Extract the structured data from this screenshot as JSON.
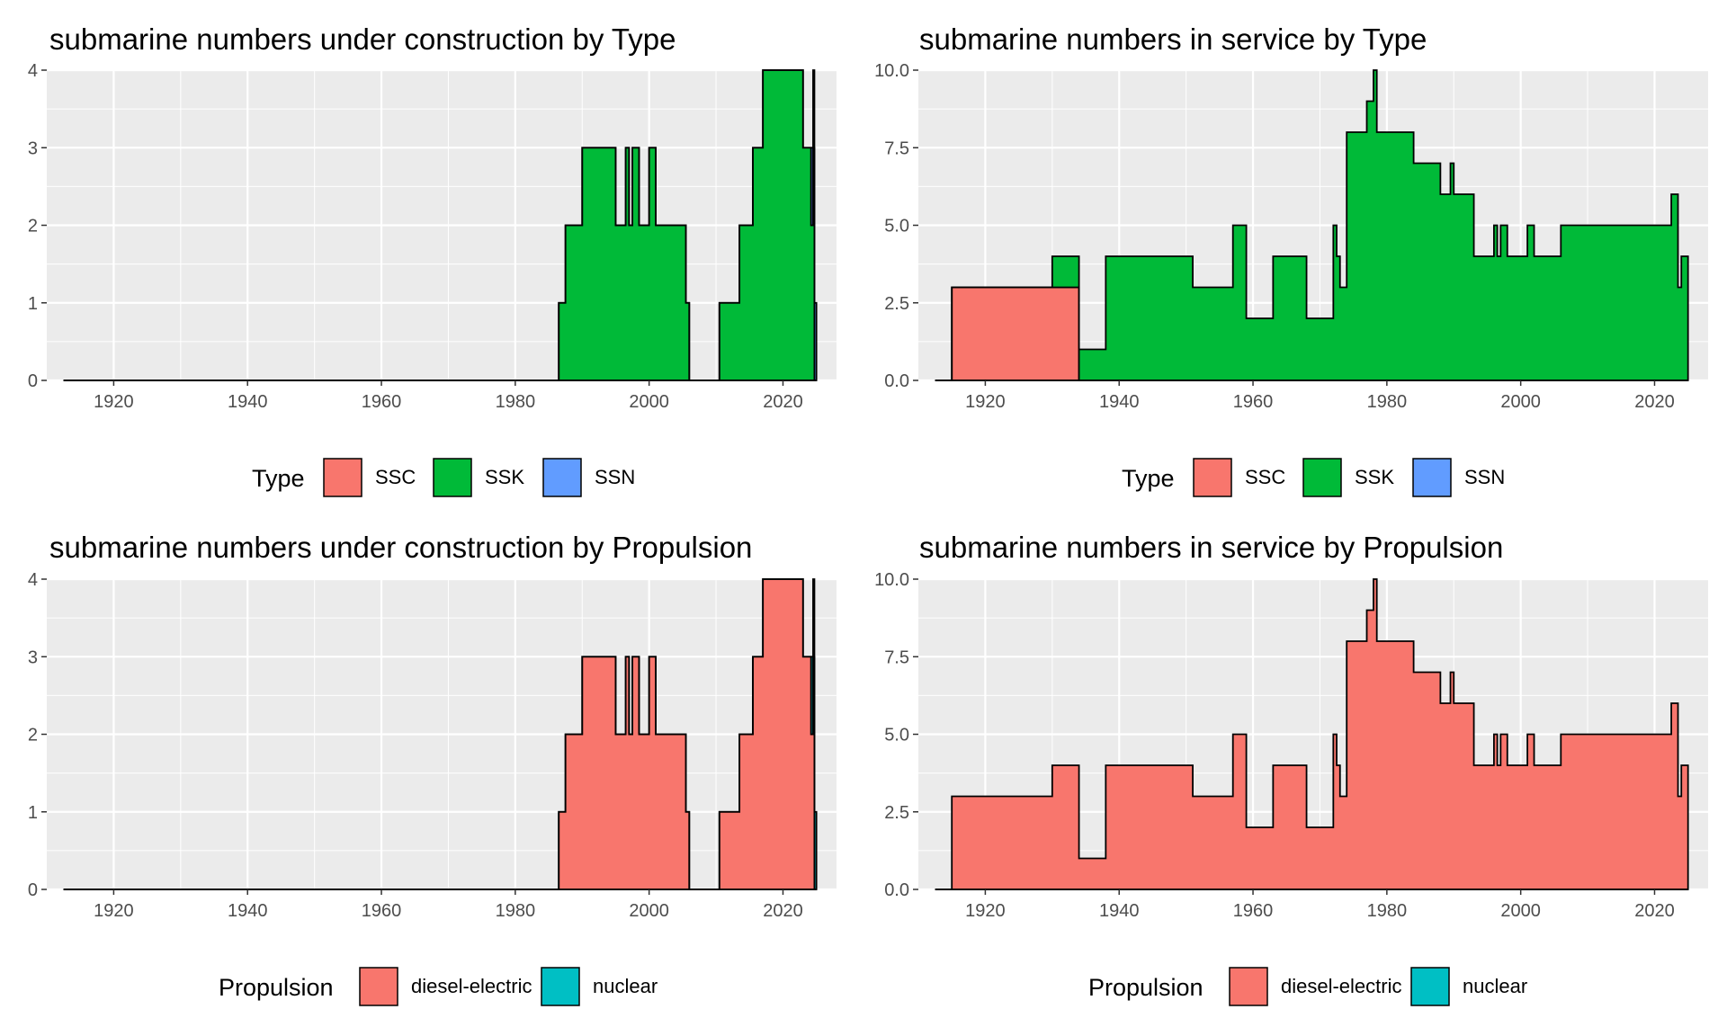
{
  "chart_data": [
    {
      "type": "area",
      "stacked": true,
      "title": "submarine numbers under construction by Type",
      "xlabel": "",
      "ylabel": "",
      "xlim": [
        1910,
        2028
      ],
      "ylim": [
        0,
        4
      ],
      "x_ticks": [
        "1920",
        "1940",
        "1960",
        "1980",
        "2000",
        "2020"
      ],
      "y_ticks": [
        "0",
        "1",
        "2",
        "3",
        "4"
      ],
      "grid": true,
      "legend": {
        "title": "Type",
        "position": "bottom",
        "entries": [
          "SSC",
          "SSK",
          "SSN"
        ]
      },
      "series": [
        {
          "name": "SSC",
          "color": "#F8766D",
          "steps": [
            [
              1912.5,
              0
            ],
            [
              2025,
              0
            ]
          ]
        },
        {
          "name": "SSK",
          "color": "#00BA38",
          "steps": [
            [
              1912.5,
              0
            ],
            [
              1986.5,
              1
            ],
            [
              1987.5,
              2
            ],
            [
              1990,
              3
            ],
            [
              1995,
              2
            ],
            [
              1996.5,
              3
            ],
            [
              1997,
              2
            ],
            [
              1997.5,
              3
            ],
            [
              1998.5,
              2
            ],
            [
              2000,
              3
            ],
            [
              2001,
              2
            ],
            [
              2005.5,
              1
            ],
            [
              2006,
              0
            ],
            [
              2010.5,
              1
            ],
            [
              2013.5,
              2
            ],
            [
              2015.5,
              3
            ],
            [
              2017,
              4
            ],
            [
              2023,
              3
            ],
            [
              2024.2,
              2
            ],
            [
              2024.5,
              3
            ],
            [
              2024.7,
              0
            ],
            [
              2025,
              0
            ]
          ]
        },
        {
          "name": "SSN",
          "color": "#619CFF",
          "steps": [
            [
              1912.5,
              0
            ],
            [
              2024.2,
              1
            ],
            [
              2025,
              0
            ]
          ]
        }
      ]
    },
    {
      "type": "area",
      "stacked": true,
      "title": "submarine numbers in service by Type",
      "xlabel": "",
      "ylabel": "",
      "xlim": [
        1910,
        2028
      ],
      "ylim": [
        0,
        10
      ],
      "x_ticks": [
        "1920",
        "1940",
        "1960",
        "1980",
        "2000",
        "2020"
      ],
      "y_ticks": [
        "0.0",
        "2.5",
        "5.0",
        "7.5",
        "10.0"
      ],
      "grid": true,
      "legend": {
        "title": "Type",
        "position": "bottom",
        "entries": [
          "SSC",
          "SSK",
          "SSN"
        ]
      },
      "series": [
        {
          "name": "SSC",
          "color": "#F8766D",
          "steps": [
            [
              1912.5,
              0
            ],
            [
              1915,
              3
            ],
            [
              1930,
              3
            ],
            [
              1934,
              0
            ],
            [
              2025,
              0
            ]
          ]
        },
        {
          "name": "SSK",
          "color": "#00BA38",
          "steps": [
            [
              1912.5,
              0
            ],
            [
              1930,
              1
            ],
            [
              1938,
              4
            ],
            [
              1951,
              3
            ],
            [
              1957,
              5
            ],
            [
              1959,
              2
            ],
            [
              1963,
              4
            ],
            [
              1968,
              2
            ],
            [
              1972,
              5
            ],
            [
              1972.5,
              4
            ],
            [
              1973,
              3
            ],
            [
              1974,
              8
            ],
            [
              1977,
              9
            ],
            [
              1978,
              10
            ],
            [
              1978.5,
              8
            ],
            [
              1984,
              7
            ],
            [
              1988,
              6
            ],
            [
              1989.5,
              7
            ],
            [
              1990,
              6
            ],
            [
              1993,
              4
            ],
            [
              1996,
              5
            ],
            [
              1996.5,
              4
            ],
            [
              1997,
              5
            ],
            [
              1998,
              4
            ],
            [
              2001,
              5
            ],
            [
              2002,
              4
            ],
            [
              2006,
              5
            ],
            [
              2022.5,
              6
            ],
            [
              2023.5,
              3
            ],
            [
              2024,
              4
            ],
            [
              2025,
              0
            ]
          ]
        },
        {
          "name": "SSN",
          "color": "#619CFF",
          "steps": [
            [
              1912.5,
              0
            ],
            [
              2025,
              0
            ]
          ]
        }
      ]
    },
    {
      "type": "area",
      "stacked": true,
      "title": "submarine numbers under construction by Propulsion",
      "xlabel": "",
      "ylabel": "",
      "xlim": [
        1910,
        2028
      ],
      "ylim": [
        0,
        4
      ],
      "x_ticks": [
        "1920",
        "1940",
        "1960",
        "1980",
        "2000",
        "2020"
      ],
      "y_ticks": [
        "0",
        "1",
        "2",
        "3",
        "4"
      ],
      "grid": true,
      "legend": {
        "title": "Propulsion",
        "position": "bottom",
        "entries": [
          "diesel-electric",
          "nuclear"
        ]
      },
      "series": [
        {
          "name": "diesel-electric",
          "color": "#F8766D",
          "steps": [
            [
              1912.5,
              0
            ],
            [
              1986.5,
              1
            ],
            [
              1987.5,
              2
            ],
            [
              1990,
              3
            ],
            [
              1995,
              2
            ],
            [
              1996.5,
              3
            ],
            [
              1997,
              2
            ],
            [
              1997.5,
              3
            ],
            [
              1998.5,
              2
            ],
            [
              2000,
              3
            ],
            [
              2001,
              2
            ],
            [
              2005.5,
              1
            ],
            [
              2006,
              0
            ],
            [
              2010.5,
              1
            ],
            [
              2013.5,
              2
            ],
            [
              2015.5,
              3
            ],
            [
              2017,
              4
            ],
            [
              2023,
              3
            ],
            [
              2024.2,
              2
            ],
            [
              2024.5,
              3
            ],
            [
              2024.7,
              0
            ],
            [
              2025,
              0
            ]
          ]
        },
        {
          "name": "nuclear",
          "color": "#00BFC4",
          "steps": [
            [
              1912.5,
              0
            ],
            [
              2024.2,
              1
            ],
            [
              2025,
              0
            ]
          ]
        }
      ]
    },
    {
      "type": "area",
      "stacked": true,
      "title": "submarine numbers in service by Propulsion",
      "xlabel": "",
      "ylabel": "",
      "xlim": [
        1910,
        2028
      ],
      "ylim": [
        0,
        10
      ],
      "x_ticks": [
        "1920",
        "1940",
        "1960",
        "1980",
        "2000",
        "2020"
      ],
      "y_ticks": [
        "0.0",
        "2.5",
        "5.0",
        "7.5",
        "10.0"
      ],
      "grid": true,
      "legend": {
        "title": "Propulsion",
        "position": "bottom",
        "entries": [
          "diesel-electric",
          "nuclear"
        ]
      },
      "series": [
        {
          "name": "diesel-electric",
          "color": "#F8766D",
          "steps": [
            [
              1912.5,
              0
            ],
            [
              1915,
              3
            ],
            [
              1930,
              4
            ],
            [
              1934,
              1
            ],
            [
              1938,
              4
            ],
            [
              1951,
              3
            ],
            [
              1957,
              5
            ],
            [
              1959,
              2
            ],
            [
              1963,
              4
            ],
            [
              1968,
              2
            ],
            [
              1972,
              5
            ],
            [
              1972.5,
              4
            ],
            [
              1973,
              3
            ],
            [
              1974,
              8
            ],
            [
              1977,
              9
            ],
            [
              1978,
              10
            ],
            [
              1978.5,
              8
            ],
            [
              1984,
              7
            ],
            [
              1988,
              6
            ],
            [
              1989.5,
              7
            ],
            [
              1990,
              6
            ],
            [
              1993,
              4
            ],
            [
              1996,
              5
            ],
            [
              1996.5,
              4
            ],
            [
              1997,
              5
            ],
            [
              1998,
              4
            ],
            [
              2001,
              5
            ],
            [
              2002,
              4
            ],
            [
              2006,
              5
            ],
            [
              2022.5,
              6
            ],
            [
              2023.5,
              3
            ],
            [
              2024,
              4
            ],
            [
              2025,
              0
            ]
          ]
        },
        {
          "name": "nuclear",
          "color": "#00BFC4",
          "steps": [
            [
              1912.5,
              0
            ],
            [
              2025,
              0
            ]
          ]
        }
      ]
    }
  ]
}
